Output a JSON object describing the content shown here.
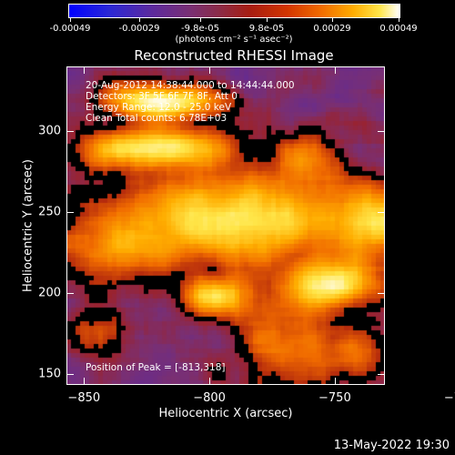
{
  "colorbar": {
    "ticks": [
      "-0.00049",
      "-0.00029",
      "-9.8e-05",
      "9.8e-05",
      "0.00029",
      "0.00049"
    ],
    "units": "(photons cm⁻² s⁻¹ asec⁻²)"
  },
  "annotation": {
    "time_range": "20-Aug-2012 14:38:44.000 to 14:44:44.000",
    "detectors": "Detectors: 3F 5F 6F 7F 8F, Att 0",
    "energy": "Energy Range: 12.0 - 25.0 keV",
    "clean": "Clean     Total counts: 6.78E+03",
    "peak": "Position of Peak = [-813,318]"
  },
  "footer": {
    "timestamp": "13-May-2022 19:30"
  },
  "chart_data": {
    "type": "heatmap",
    "title": "Reconstructed RHESSI Image",
    "xlabel": "Heliocentric X (arcsec)",
    "ylabel": "Heliocentric Y (arcsec)",
    "xlim": [
      -857,
      -730
    ],
    "ylim": [
      143,
      340
    ],
    "xticks": [
      -850,
      -800,
      -750,
      -700
    ],
    "yticks": [
      150,
      200,
      250,
      300
    ],
    "zlim": [
      -0.00049,
      0.00049
    ],
    "peak": [
      -813,
      318
    ],
    "colormap": [
      "#0000ff",
      "#5c2a9e",
      "#7a2f72",
      "#a81d10",
      "#f06a00",
      "#ffad00",
      "#ffe64a",
      "#ffffff"
    ]
  }
}
